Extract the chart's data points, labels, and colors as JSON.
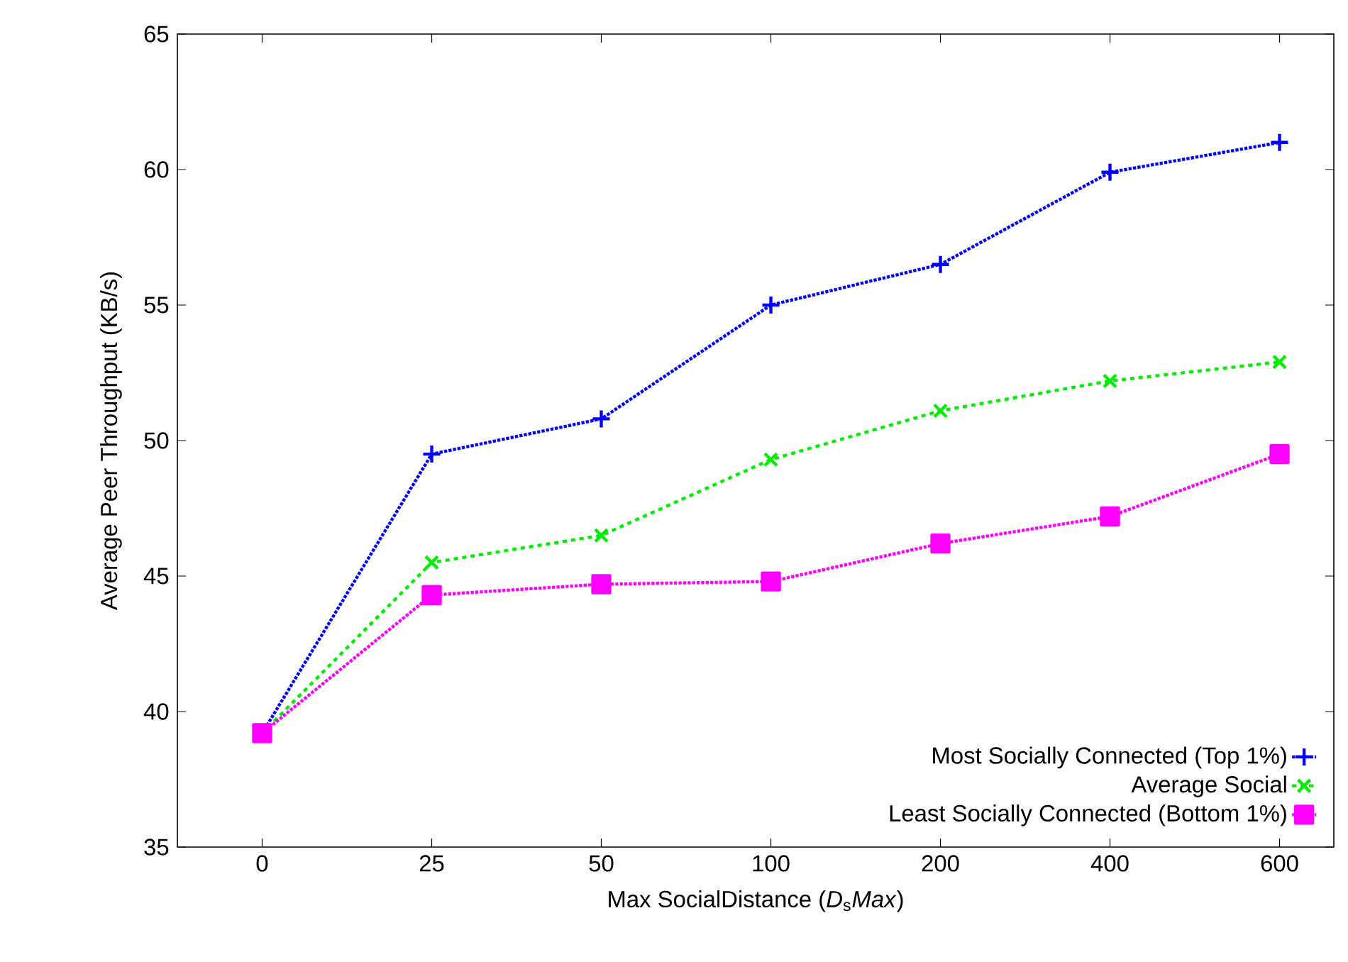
{
  "chart_data": {
    "type": "line",
    "xlabel": "Max SocialDistance (*D*$_{s}$*Max*)",
    "ylabel": "Average Peer Throughput (KB/s)",
    "categories": [
      "0",
      "25",
      "50",
      "100",
      "200",
      "400",
      "600"
    ],
    "series": [
      {
        "name": "Most Socially Connected (Top 1%)",
        "color": "#0000ff",
        "marker": "cross",
        "line_style": "dotted",
        "values": [
          39.2,
          49.5,
          50.8,
          55.0,
          56.5,
          59.9,
          61.0
        ]
      },
      {
        "name": "Average Social",
        "color": "#00ee00",
        "marker": "cross",
        "line_style": "dashed",
        "values": [
          39.2,
          45.5,
          46.5,
          49.3,
          51.1,
          52.2,
          52.9
        ]
      },
      {
        "name": "Least Socially Connected (Bottom 1%)",
        "color": "#ff00ff",
        "marker": "square",
        "line_style": "dotted",
        "values": [
          39.2,
          44.3,
          44.7,
          44.8,
          46.2,
          47.2,
          49.5
        ]
      }
    ],
    "ylim": [
      35,
      65
    ],
    "yticks": [
      35,
      40,
      45,
      50,
      55,
      60,
      65
    ],
    "grid": false,
    "legend": "bottom right"
  }
}
